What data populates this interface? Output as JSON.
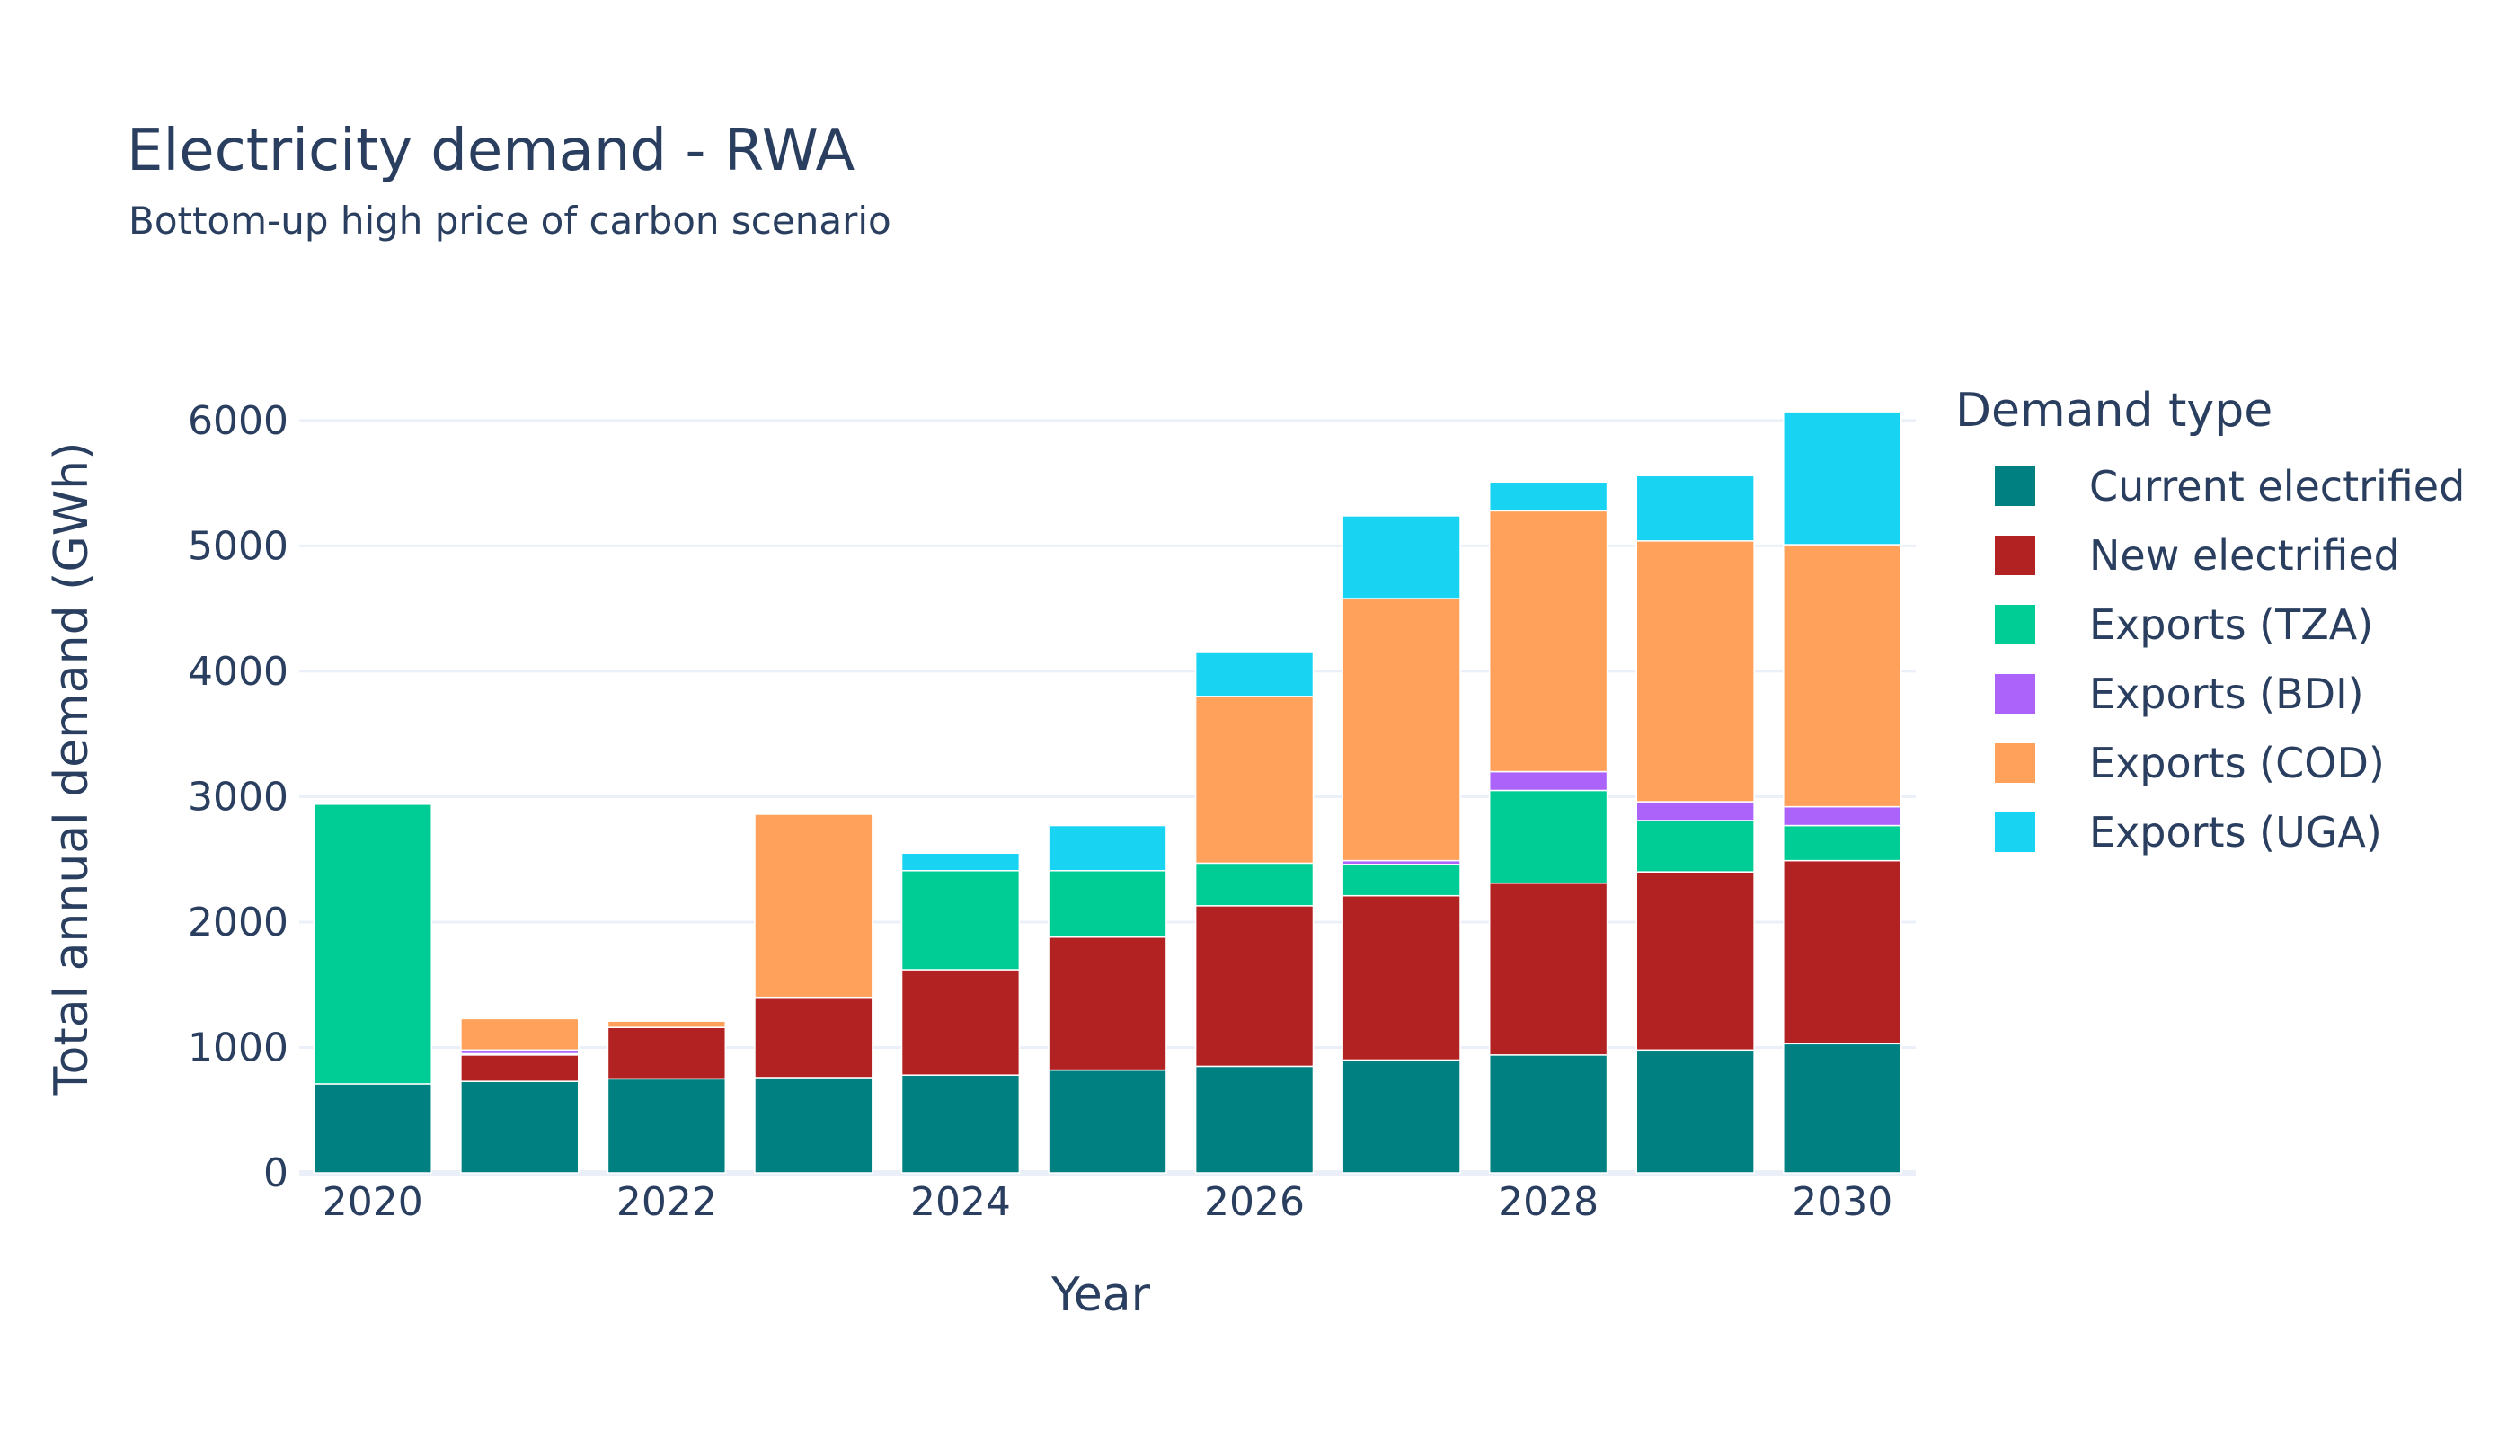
{
  "chart_data": {
    "type": "bar",
    "stacked": true,
    "title": "Electricity demand - RWA",
    "subtitle": "Bottom-up high price of carbon scenario",
    "xlabel": "Year",
    "ylabel": "Total annual demand (GWh)",
    "ylim": [
      0,
      6200
    ],
    "yticks": [
      0,
      1000,
      2000,
      3000,
      4000,
      5000,
      6000
    ],
    "xticks": [
      2020,
      2022,
      2024,
      2026,
      2028,
      2030
    ],
    "grid": true,
    "legend_title": "Demand type",
    "legend_position": "right",
    "categories": [
      2020,
      2021,
      2022,
      2023,
      2024,
      2025,
      2026,
      2027,
      2028,
      2029,
      2030
    ],
    "series": [
      {
        "name": "Current electrified",
        "color": "#008080",
        "values": [
          710,
          730,
          750,
          760,
          780,
          820,
          850,
          900,
          940,
          980,
          1030
        ]
      },
      {
        "name": "New electrified",
        "color": "#b22222",
        "values": [
          0,
          210,
          410,
          640,
          840,
          1060,
          1280,
          1310,
          1370,
          1420,
          1460
        ]
      },
      {
        "name": "Exports (TZA)",
        "color": "#00cc96",
        "values": [
          2230,
          10,
          0,
          0,
          790,
          530,
          340,
          250,
          740,
          410,
          280
        ]
      },
      {
        "name": "Exports (BDI)",
        "color": "#ab63fa",
        "values": [
          0,
          30,
          0,
          0,
          0,
          0,
          0,
          30,
          150,
          150,
          150
        ]
      },
      {
        "name": "Exports (COD)",
        "color": "#ffa15a",
        "values": [
          0,
          250,
          50,
          1460,
          0,
          0,
          1330,
          2090,
          2080,
          2080,
          2090
        ]
      },
      {
        "name": "Exports (UGA)",
        "color": "#19d3f3",
        "values": [
          0,
          0,
          0,
          0,
          140,
          360,
          350,
          660,
          230,
          520,
          1060
        ]
      }
    ]
  }
}
